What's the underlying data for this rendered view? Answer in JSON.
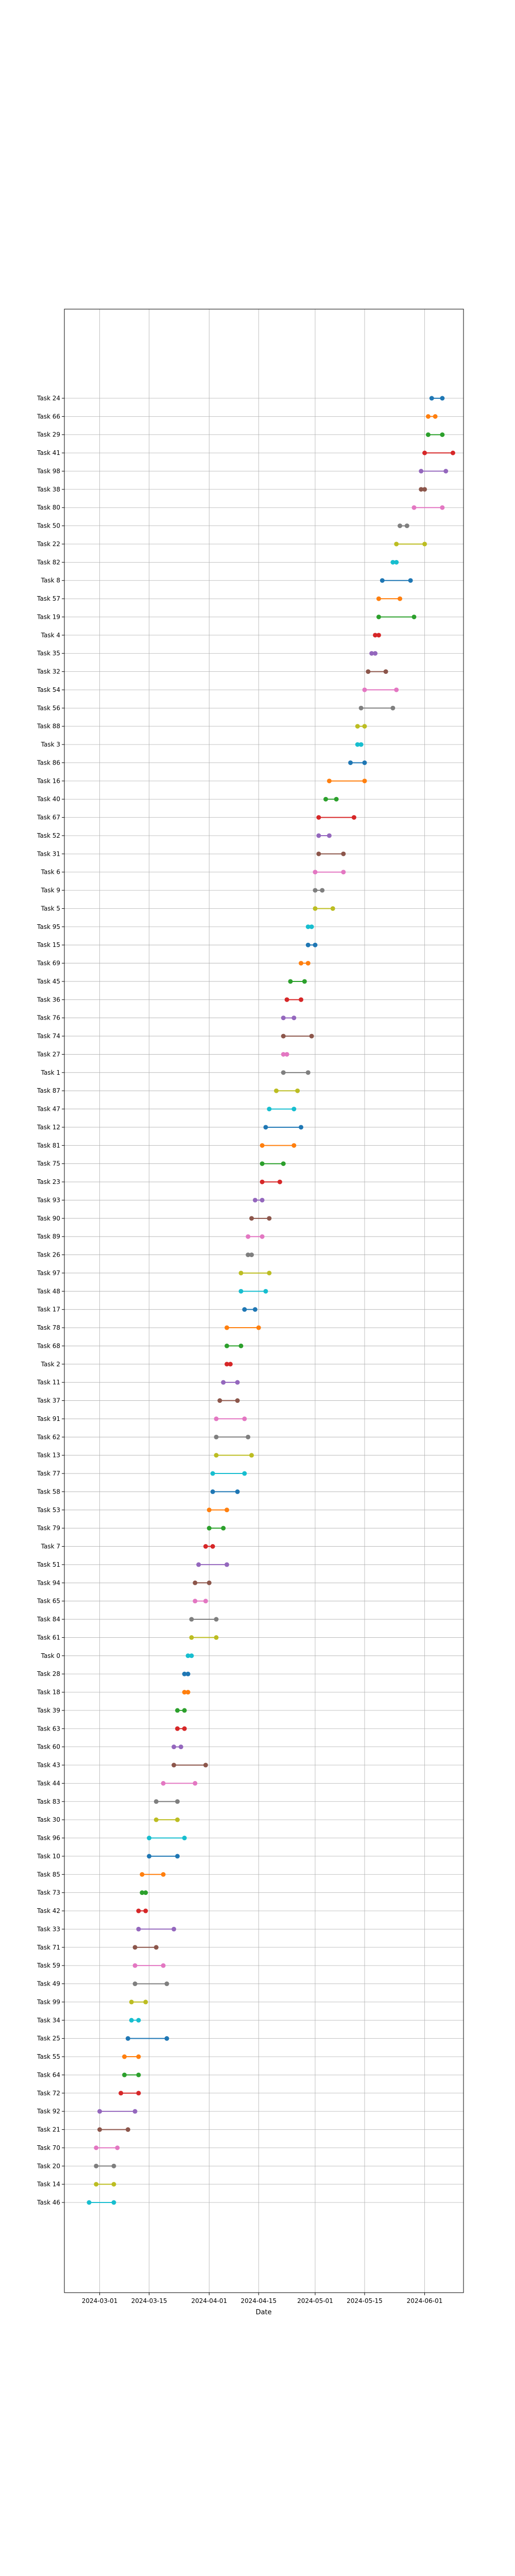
{
  "chart_data": {
    "type": "dumbbell",
    "xlabel": "Date",
    "ylabel": "",
    "title": "",
    "grid": true,
    "x_ticks": [
      "2024-03-01",
      "2024-03-15",
      "2024-04-01",
      "2024-04-15",
      "2024-05-01",
      "2024-05-15",
      "2024-06-01"
    ],
    "xlim": [
      "2024-02-20",
      "2024-06-12"
    ],
    "colors": [
      "#1f77b4",
      "#ff7f0e",
      "#2ca02c",
      "#d62728",
      "#9467bd",
      "#8c564b",
      "#e377c2",
      "#7f7f7f",
      "#bcbd22",
      "#17becf"
    ],
    "tasks": [
      {
        "label": "Task 24",
        "start": "2024-06-03",
        "end": "2024-06-06"
      },
      {
        "label": "Task 66",
        "start": "2024-06-02",
        "end": "2024-06-04"
      },
      {
        "label": "Task 29",
        "start": "2024-06-02",
        "end": "2024-06-06"
      },
      {
        "label": "Task 41",
        "start": "2024-06-01",
        "end": "2024-06-09"
      },
      {
        "label": "Task 98",
        "start": "2024-05-31",
        "end": "2024-06-07"
      },
      {
        "label": "Task 38",
        "start": "2024-05-31",
        "end": "2024-06-01"
      },
      {
        "label": "Task 80",
        "start": "2024-05-29",
        "end": "2024-06-06"
      },
      {
        "label": "Task 50",
        "start": "2024-05-25",
        "end": "2024-05-27"
      },
      {
        "label": "Task 22",
        "start": "2024-05-24",
        "end": "2024-06-01"
      },
      {
        "label": "Task 82",
        "start": "2024-05-23",
        "end": "2024-05-24"
      },
      {
        "label": "Task 8",
        "start": "2024-05-20",
        "end": "2024-05-28"
      },
      {
        "label": "Task 57",
        "start": "2024-05-19",
        "end": "2024-05-25"
      },
      {
        "label": "Task 19",
        "start": "2024-05-19",
        "end": "2024-05-29"
      },
      {
        "label": "Task 4",
        "start": "2024-05-18",
        "end": "2024-05-19"
      },
      {
        "label": "Task 35",
        "start": "2024-05-17",
        "end": "2024-05-18"
      },
      {
        "label": "Task 32",
        "start": "2024-05-16",
        "end": "2024-05-21"
      },
      {
        "label": "Task 54",
        "start": "2024-05-15",
        "end": "2024-05-24"
      },
      {
        "label": "Task 56",
        "start": "2024-05-14",
        "end": "2024-05-23"
      },
      {
        "label": "Task 88",
        "start": "2024-05-13",
        "end": "2024-05-15"
      },
      {
        "label": "Task 3",
        "start": "2024-05-13",
        "end": "2024-05-14"
      },
      {
        "label": "Task 86",
        "start": "2024-05-11",
        "end": "2024-05-15"
      },
      {
        "label": "Task 16",
        "start": "2024-05-05",
        "end": "2024-05-15"
      },
      {
        "label": "Task 40",
        "start": "2024-05-04",
        "end": "2024-05-07"
      },
      {
        "label": "Task 67",
        "start": "2024-05-02",
        "end": "2024-05-12"
      },
      {
        "label": "Task 52",
        "start": "2024-05-02",
        "end": "2024-05-05"
      },
      {
        "label": "Task 31",
        "start": "2024-05-02",
        "end": "2024-05-09"
      },
      {
        "label": "Task 6",
        "start": "2024-05-01",
        "end": "2024-05-09"
      },
      {
        "label": "Task 9",
        "start": "2024-05-01",
        "end": "2024-05-03"
      },
      {
        "label": "Task 5",
        "start": "2024-05-01",
        "end": "2024-05-06"
      },
      {
        "label": "Task 95",
        "start": "2024-04-29",
        "end": "2024-04-30"
      },
      {
        "label": "Task 15",
        "start": "2024-04-29",
        "end": "2024-05-01"
      },
      {
        "label": "Task 69",
        "start": "2024-04-27",
        "end": "2024-04-29"
      },
      {
        "label": "Task 45",
        "start": "2024-04-24",
        "end": "2024-04-28"
      },
      {
        "label": "Task 36",
        "start": "2024-04-23",
        "end": "2024-04-27"
      },
      {
        "label": "Task 76",
        "start": "2024-04-22",
        "end": "2024-04-25"
      },
      {
        "label": "Task 74",
        "start": "2024-04-22",
        "end": "2024-04-30"
      },
      {
        "label": "Task 27",
        "start": "2024-04-22",
        "end": "2024-04-23"
      },
      {
        "label": "Task 1",
        "start": "2024-04-22",
        "end": "2024-04-29"
      },
      {
        "label": "Task 87",
        "start": "2024-04-20",
        "end": "2024-04-26"
      },
      {
        "label": "Task 47",
        "start": "2024-04-18",
        "end": "2024-04-25"
      },
      {
        "label": "Task 12",
        "start": "2024-04-17",
        "end": "2024-04-27"
      },
      {
        "label": "Task 81",
        "start": "2024-04-16",
        "end": "2024-04-25"
      },
      {
        "label": "Task 75",
        "start": "2024-04-16",
        "end": "2024-04-22"
      },
      {
        "label": "Task 23",
        "start": "2024-04-16",
        "end": "2024-04-21"
      },
      {
        "label": "Task 93",
        "start": "2024-04-14",
        "end": "2024-04-16"
      },
      {
        "label": "Task 90",
        "start": "2024-04-13",
        "end": "2024-04-18"
      },
      {
        "label": "Task 89",
        "start": "2024-04-12",
        "end": "2024-04-16"
      },
      {
        "label": "Task 26",
        "start": "2024-04-12",
        "end": "2024-04-13"
      },
      {
        "label": "Task 97",
        "start": "2024-04-10",
        "end": "2024-04-18"
      },
      {
        "label": "Task 48",
        "start": "2024-04-10",
        "end": "2024-04-17"
      },
      {
        "label": "Task 17",
        "start": "2024-04-11",
        "end": "2024-04-14"
      },
      {
        "label": "Task 78",
        "start": "2024-04-06",
        "end": "2024-04-15"
      },
      {
        "label": "Task 68",
        "start": "2024-04-06",
        "end": "2024-04-10"
      },
      {
        "label": "Task 2",
        "start": "2024-04-06",
        "end": "2024-04-07"
      },
      {
        "label": "Task 11",
        "start": "2024-04-05",
        "end": "2024-04-09"
      },
      {
        "label": "Task 37",
        "start": "2024-04-04",
        "end": "2024-04-09"
      },
      {
        "label": "Task 91",
        "start": "2024-04-03",
        "end": "2024-04-11"
      },
      {
        "label": "Task 62",
        "start": "2024-04-03",
        "end": "2024-04-12"
      },
      {
        "label": "Task 13",
        "start": "2024-04-03",
        "end": "2024-04-13"
      },
      {
        "label": "Task 77",
        "start": "2024-04-02",
        "end": "2024-04-11"
      },
      {
        "label": "Task 58",
        "start": "2024-04-02",
        "end": "2024-04-09"
      },
      {
        "label": "Task 53",
        "start": "2024-04-01",
        "end": "2024-04-06"
      },
      {
        "label": "Task 79",
        "start": "2024-04-01",
        "end": "2024-04-05"
      },
      {
        "label": "Task 7",
        "start": "2024-03-31",
        "end": "2024-04-02"
      },
      {
        "label": "Task 51",
        "start": "2024-03-29",
        "end": "2024-04-06"
      },
      {
        "label": "Task 94",
        "start": "2024-03-28",
        "end": "2024-04-01"
      },
      {
        "label": "Task 65",
        "start": "2024-03-28",
        "end": "2024-03-31"
      },
      {
        "label": "Task 84",
        "start": "2024-03-27",
        "end": "2024-04-03"
      },
      {
        "label": "Task 61",
        "start": "2024-03-27",
        "end": "2024-04-03"
      },
      {
        "label": "Task 0",
        "start": "2024-03-26",
        "end": "2024-03-27"
      },
      {
        "label": "Task 28",
        "start": "2024-03-25",
        "end": "2024-03-26"
      },
      {
        "label": "Task 18",
        "start": "2024-03-25",
        "end": "2024-03-26"
      },
      {
        "label": "Task 39",
        "start": "2024-03-23",
        "end": "2024-03-25"
      },
      {
        "label": "Task 63",
        "start": "2024-03-23",
        "end": "2024-03-25"
      },
      {
        "label": "Task 60",
        "start": "2024-03-22",
        "end": "2024-03-24"
      },
      {
        "label": "Task 43",
        "start": "2024-03-22",
        "end": "2024-03-31"
      },
      {
        "label": "Task 44",
        "start": "2024-03-19",
        "end": "2024-03-28"
      },
      {
        "label": "Task 83",
        "start": "2024-03-17",
        "end": "2024-03-23"
      },
      {
        "label": "Task 30",
        "start": "2024-03-17",
        "end": "2024-03-23"
      },
      {
        "label": "Task 96",
        "start": "2024-03-15",
        "end": "2024-03-25"
      },
      {
        "label": "Task 10",
        "start": "2024-03-15",
        "end": "2024-03-23"
      },
      {
        "label": "Task 85",
        "start": "2024-03-13",
        "end": "2024-03-19"
      },
      {
        "label": "Task 73",
        "start": "2024-03-13",
        "end": "2024-03-14"
      },
      {
        "label": "Task 42",
        "start": "2024-03-12",
        "end": "2024-03-14"
      },
      {
        "label": "Task 33",
        "start": "2024-03-12",
        "end": "2024-03-22"
      },
      {
        "label": "Task 71",
        "start": "2024-03-11",
        "end": "2024-03-17"
      },
      {
        "label": "Task 59",
        "start": "2024-03-11",
        "end": "2024-03-19"
      },
      {
        "label": "Task 49",
        "start": "2024-03-11",
        "end": "2024-03-20"
      },
      {
        "label": "Task 99",
        "start": "2024-03-10",
        "end": "2024-03-14"
      },
      {
        "label": "Task 34",
        "start": "2024-03-10",
        "end": "2024-03-12"
      },
      {
        "label": "Task 25",
        "start": "2024-03-09",
        "end": "2024-03-20"
      },
      {
        "label": "Task 55",
        "start": "2024-03-08",
        "end": "2024-03-12"
      },
      {
        "label": "Task 64",
        "start": "2024-03-08",
        "end": "2024-03-12"
      },
      {
        "label": "Task 72",
        "start": "2024-03-07",
        "end": "2024-03-12"
      },
      {
        "label": "Task 92",
        "start": "2024-03-01",
        "end": "2024-03-11"
      },
      {
        "label": "Task 21",
        "start": "2024-03-01",
        "end": "2024-03-09"
      },
      {
        "label": "Task 70",
        "start": "2024-02-29",
        "end": "2024-03-06"
      },
      {
        "label": "Task 20",
        "start": "2024-02-29",
        "end": "2024-03-05"
      },
      {
        "label": "Task 14",
        "start": "2024-02-29",
        "end": "2024-03-05"
      },
      {
        "label": "Task 46",
        "start": "2024-02-27",
        "end": "2024-03-05"
      }
    ]
  }
}
